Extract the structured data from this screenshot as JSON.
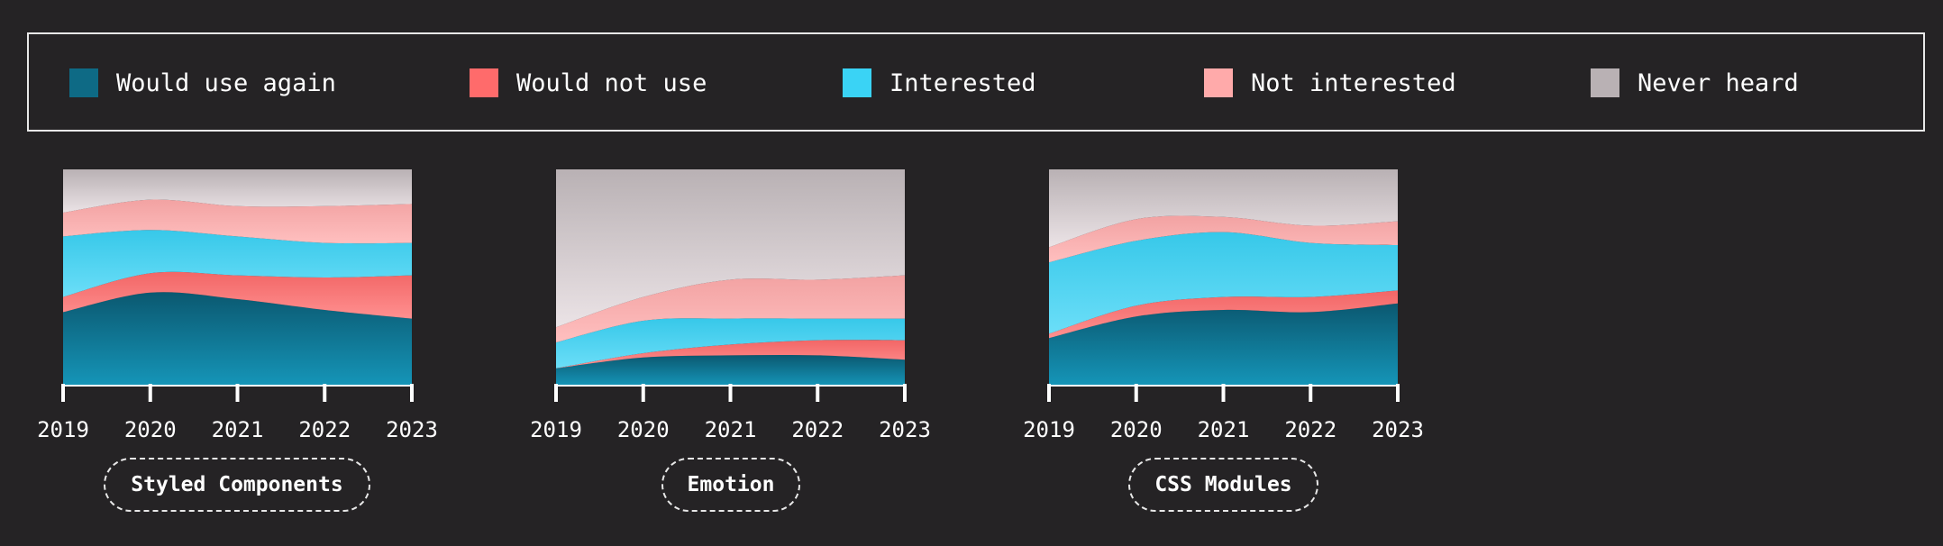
{
  "legend": [
    {
      "label": "Would use again",
      "color": "#0e6a85"
    },
    {
      "label": "Would not use",
      "color": "#ff6b6b"
    },
    {
      "label": "Interested",
      "color": "#3ad3f5"
    },
    {
      "label": "Not interested",
      "color": "#ffaaaa"
    },
    {
      "label": "Never heard",
      "color": "#b9b1b4"
    }
  ],
  "chart_data": [
    {
      "type": "area",
      "title": "Styled Components",
      "x": [
        "2019",
        "2020",
        "2021",
        "2022",
        "2023"
      ],
      "ylim": [
        0,
        100
      ],
      "series": [
        {
          "name": "Would use again",
          "values": [
            34,
            43,
            40,
            35,
            31
          ]
        },
        {
          "name": "Would not use",
          "values": [
            7,
            9,
            11,
            15,
            20
          ]
        },
        {
          "name": "Interested",
          "values": [
            28,
            20,
            18,
            16,
            15
          ]
        },
        {
          "name": "Not interested",
          "values": [
            11,
            14,
            14,
            17,
            18
          ]
        },
        {
          "name": "Never heard",
          "values": [
            20,
            14,
            17,
            17,
            16
          ]
        }
      ]
    },
    {
      "type": "area",
      "title": "Emotion",
      "x": [
        "2019",
        "2020",
        "2021",
        "2022",
        "2023"
      ],
      "ylim": [
        0,
        100
      ],
      "series": [
        {
          "name": "Would use again",
          "values": [
            8,
            13,
            14,
            14,
            12
          ]
        },
        {
          "name": "Would not use",
          "values": [
            0,
            2,
            5,
            7,
            9
          ]
        },
        {
          "name": "Interested",
          "values": [
            12,
            15,
            12,
            10,
            10
          ]
        },
        {
          "name": "Not interested",
          "values": [
            7,
            11,
            18,
            18,
            20
          ]
        },
        {
          "name": "Never heard",
          "values": [
            73,
            59,
            51,
            51,
            49
          ]
        }
      ]
    },
    {
      "type": "area",
      "title": "CSS Modules",
      "x": [
        "2019",
        "2020",
        "2021",
        "2022",
        "2023"
      ],
      "ylim": [
        0,
        100
      ],
      "series": [
        {
          "name": "Would use again",
          "values": [
            22,
            32,
            35,
            34,
            38
          ]
        },
        {
          "name": "Would not use",
          "values": [
            2,
            5,
            6,
            7,
            6
          ]
        },
        {
          "name": "Interested",
          "values": [
            33,
            30,
            30,
            25,
            21
          ]
        },
        {
          "name": "Not interested",
          "values": [
            7,
            10,
            7,
            8,
            11
          ]
        },
        {
          "name": "Never heard",
          "values": [
            36,
            23,
            22,
            26,
            24
          ]
        }
      ]
    }
  ]
}
